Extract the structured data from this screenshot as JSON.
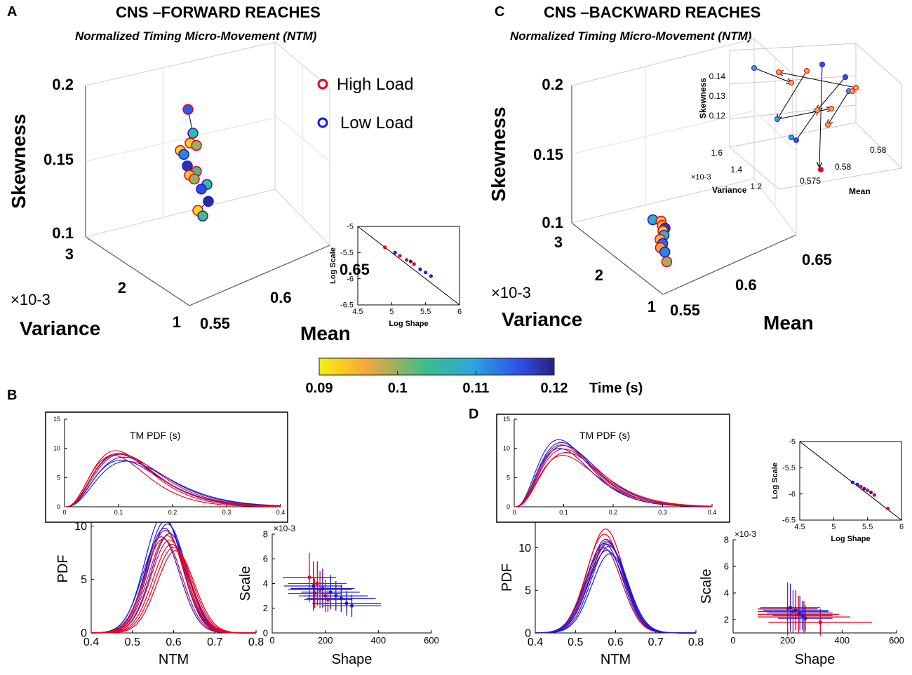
{
  "chart_data": [
    {
      "panel": "A",
      "type": "scatter",
      "title": "CNS –FORWARD REACHES",
      "subtitle": "Normalized Timing Micro-Movement (NTM)",
      "zlabel": "Skewness",
      "ylabel": "Variance",
      "xlabel": "Mean",
      "variance_multiplier": "×10-3",
      "z_ticks": [
        "0.2",
        "0.15",
        "0.1"
      ],
      "variance_ticks": [
        "3",
        "2",
        "1"
      ],
      "mean_ticks": [
        "0.65",
        "0.6",
        "0.55"
      ],
      "legend": [
        {
          "label": "High Load",
          "color": "#e8001c"
        },
        {
          "label": "Low Load",
          "color": "#1a1adb"
        }
      ],
      "points": [
        {
          "mean": 0.585,
          "variance": 1.6,
          "skewness": 0.18,
          "time": 0.115,
          "load": "high"
        },
        {
          "mean": 0.59,
          "variance": 1.5,
          "skewness": 0.165,
          "time": 0.105,
          "load": "low"
        },
        {
          "mean": 0.588,
          "variance": 1.6,
          "skewness": 0.158,
          "time": 0.093,
          "load": "high"
        },
        {
          "mean": 0.595,
          "variance": 1.5,
          "skewness": 0.157,
          "time": 0.1,
          "load": "high"
        },
        {
          "mean": 0.578,
          "variance": 1.8,
          "skewness": 0.152,
          "time": 0.092,
          "load": "high"
        },
        {
          "mean": 0.581,
          "variance": 1.7,
          "skewness": 0.15,
          "time": 0.112,
          "load": "low"
        },
        {
          "mean": 0.584,
          "variance": 1.6,
          "skewness": 0.143,
          "time": 0.118,
          "load": "low"
        },
        {
          "mean": 0.595,
          "variance": 1.5,
          "skewness": 0.14,
          "time": 0.103,
          "load": "high"
        },
        {
          "mean": 0.587,
          "variance": 1.6,
          "skewness": 0.137,
          "time": 0.094,
          "load": "high"
        },
        {
          "mean": 0.592,
          "variance": 1.5,
          "skewness": 0.135,
          "time": 0.1,
          "load": "high"
        },
        {
          "mean": 0.608,
          "variance": 1.4,
          "skewness": 0.132,
          "time": 0.104,
          "load": "low"
        },
        {
          "mean": 0.6,
          "variance": 1.4,
          "skewness": 0.129,
          "time": 0.116,
          "load": "low"
        },
        {
          "mean": 0.61,
          "variance": 1.4,
          "skewness": 0.121,
          "time": 0.119,
          "load": "low"
        },
        {
          "mean": 0.595,
          "variance": 1.4,
          "skewness": 0.115,
          "time": 0.092,
          "load": "high"
        },
        {
          "mean": 0.6,
          "variance": 1.3,
          "skewness": 0.112,
          "time": 0.103,
          "load": "low"
        }
      ]
    },
    {
      "panel": "C",
      "type": "scatter",
      "title": "CNS –BACKWARD REACHES",
      "subtitle": "Normalized Timing Micro-Movement (NTM)",
      "zlabel": "Skewness",
      "ylabel": "Variance",
      "xlabel": "Mean",
      "variance_multiplier": "×10-3",
      "z_ticks": [
        "0.2",
        "0.15",
        "0.1"
      ],
      "variance_ticks": [
        "3",
        "2",
        "1"
      ],
      "mean_ticks": [
        "0.65",
        "0.6",
        "0.55"
      ],
      "inset": {
        "zlabel": "Skewness",
        "ylabel": "Variance",
        "xlabel": "Mean",
        "variance_multiplier": "×10-3",
        "z_ticks": [
          "0.14",
          "0.13",
          "0.12"
        ],
        "variance_ticks": [
          "1.6",
          "1.4",
          "1.2"
        ],
        "mean_ticks": [
          "0.575",
          "0.58",
          "0.58"
        ]
      },
      "points": [
        {
          "mean": 0.57,
          "variance": 1.2,
          "skewness": 0.122,
          "time": 0.108,
          "load": "low"
        },
        {
          "mean": 0.575,
          "variance": 1.2,
          "skewness": 0.121,
          "time": 0.094,
          "load": "high"
        },
        {
          "mean": 0.576,
          "variance": 1.2,
          "skewness": 0.118,
          "time": 0.096,
          "load": "high"
        },
        {
          "mean": 0.578,
          "variance": 1.2,
          "skewness": 0.116,
          "time": 0.118,
          "load": "low"
        },
        {
          "mean": 0.577,
          "variance": 1.2,
          "skewness": 0.114,
          "time": 0.093,
          "load": "high"
        },
        {
          "mean": 0.578,
          "variance": 1.2,
          "skewness": 0.111,
          "time": 0.106,
          "load": "low"
        },
        {
          "mean": 0.576,
          "variance": 1.2,
          "skewness": 0.108,
          "time": 0.095,
          "load": "high"
        },
        {
          "mean": 0.578,
          "variance": 1.2,
          "skewness": 0.105,
          "time": 0.114,
          "load": "low"
        },
        {
          "mean": 0.577,
          "variance": 1.2,
          "skewness": 0.102,
          "time": 0.096,
          "load": "high"
        },
        {
          "mean": 0.58,
          "variance": 1.2,
          "skewness": 0.099,
          "time": 0.112,
          "load": "low"
        },
        {
          "mean": 0.582,
          "variance": 1.2,
          "skewness": 0.092,
          "time": 0.099,
          "load": "high"
        }
      ]
    },
    {
      "panel": "colorbar",
      "type": "heatmap",
      "label": "Time (s)",
      "ticks": [
        "0.09",
        "0.1",
        "0.11",
        "0.12"
      ],
      "range": [
        0.09,
        0.12
      ],
      "colors": [
        "#f8f010",
        "#f5a63a",
        "#3dbd8a",
        "#2aa8dc",
        "#3050e8",
        "#2a2080"
      ]
    },
    {
      "panel": "B",
      "type": "line",
      "main": {
        "xlabel": "NTM",
        "ylabel": "PDF",
        "x_ticks": [
          "0.4",
          "0.5",
          "0.6",
          "0.7",
          "0.8"
        ],
        "y_ticks": [
          "0",
          "5",
          "10"
        ],
        "xlim": [
          0.4,
          0.8
        ],
        "ylim": [
          0,
          12
        ],
        "curves": [
          {
            "load": "low",
            "mu": 0.575,
            "peak": 11.0
          },
          {
            "load": "low",
            "mu": 0.58,
            "peak": 10.5
          },
          {
            "load": "low",
            "mu": 0.585,
            "peak": 10.2
          },
          {
            "load": "low",
            "mu": 0.578,
            "peak": 9.8
          },
          {
            "load": "low",
            "mu": 0.59,
            "peak": 9.3
          },
          {
            "load": "low",
            "mu": 0.57,
            "peak": 9.0
          },
          {
            "load": "high",
            "mu": 0.58,
            "peak": 9.6
          },
          {
            "load": "high",
            "mu": 0.585,
            "peak": 9.1
          },
          {
            "load": "high",
            "mu": 0.59,
            "peak": 8.7
          },
          {
            "load": "high",
            "mu": 0.595,
            "peak": 8.3
          },
          {
            "load": "high",
            "mu": 0.6,
            "peak": 8.0
          },
          {
            "load": "high",
            "mu": 0.575,
            "peak": 8.8
          },
          {
            "load": "high",
            "mu": 0.605,
            "peak": 7.7
          }
        ]
      },
      "inset": {
        "title": "TM PDF (s)",
        "x_ticks": [
          "0",
          "0.1",
          "0.2",
          "0.3",
          "0.4"
        ],
        "y_ticks": [
          "0",
          "5",
          "10",
          "15"
        ],
        "xlim": [
          0,
          0.4
        ],
        "ylim": [
          0,
          15
        ],
        "curves": [
          {
            "load": "low",
            "mode": 0.1,
            "peak": 9.0
          },
          {
            "load": "low",
            "mode": 0.11,
            "peak": 8.5
          },
          {
            "load": "low",
            "mode": 0.105,
            "peak": 8.0
          },
          {
            "load": "low",
            "mode": 0.115,
            "peak": 7.8
          },
          {
            "load": "high",
            "mode": 0.095,
            "peak": 9.6
          },
          {
            "load": "high",
            "mode": 0.1,
            "peak": 9.2
          },
          {
            "load": "high",
            "mode": 0.09,
            "peak": 8.8
          },
          {
            "load": "high",
            "mode": 0.105,
            "peak": 9.0
          }
        ]
      },
      "scatter": {
        "xlabel": "Shape",
        "ylabel": "Scale",
        "multiplier": "×10-3",
        "x_ticks": [
          "0",
          "200",
          "400",
          "600"
        ],
        "y_ticks": [
          "0",
          "2",
          "4",
          "6",
          "8"
        ],
        "xlim": [
          0,
          600
        ],
        "ylim": [
          0,
          8
        ],
        "points": [
          {
            "load": "high",
            "x": 140,
            "y": 4.5,
            "xerr": 100,
            "yerr": 2.0
          },
          {
            "load": "high",
            "x": 170,
            "y": 4.0,
            "xerr": 110,
            "yerr": 1.8
          },
          {
            "load": "high",
            "x": 180,
            "y": 3.5,
            "xerr": 120,
            "yerr": 1.5
          },
          {
            "load": "high",
            "x": 200,
            "y": 3.0,
            "xerr": 100,
            "yerr": 1.3
          },
          {
            "load": "high",
            "x": 210,
            "y": 2.7,
            "xerr": 90,
            "yerr": 1.0
          },
          {
            "load": "high",
            "x": 160,
            "y": 3.2,
            "xerr": 100,
            "yerr": 1.2
          },
          {
            "load": "low",
            "x": 155,
            "y": 3.8,
            "xerr": 110,
            "yerr": 2.0
          },
          {
            "load": "low",
            "x": 190,
            "y": 3.6,
            "xerr": 120,
            "yerr": 1.6
          },
          {
            "load": "low",
            "x": 220,
            "y": 3.3,
            "xerr": 110,
            "yerr": 1.4
          },
          {
            "load": "low",
            "x": 240,
            "y": 3.0,
            "xerr": 120,
            "yerr": 1.2
          },
          {
            "load": "low",
            "x": 260,
            "y": 2.8,
            "xerr": 130,
            "yerr": 1.1
          },
          {
            "load": "low",
            "x": 280,
            "y": 2.4,
            "xerr": 130,
            "yerr": 1.0
          },
          {
            "load": "low",
            "x": 300,
            "y": 2.2,
            "xerr": 110,
            "yerr": 0.9
          }
        ]
      },
      "log_inset": {
        "xlabel": "Log Shape",
        "ylabel": "Log Scale",
        "x_ticks": [
          "4.5",
          "5",
          "5.5",
          "6"
        ],
        "y_ticks": [
          "-5",
          "-5.5",
          "-6",
          "-6.5"
        ],
        "xlim": [
          4.5,
          6
        ],
        "ylim": [
          -6.5,
          -5
        ],
        "points": [
          {
            "load": "high",
            "x": 4.9,
            "y": -5.4
          },
          {
            "load": "low",
            "x": 5.05,
            "y": -5.5
          },
          {
            "load": "high",
            "x": 5.12,
            "y": -5.56
          },
          {
            "load": "high",
            "x": 5.22,
            "y": -5.64
          },
          {
            "load": "low",
            "x": 5.28,
            "y": -5.67
          },
          {
            "load": "high",
            "x": 5.33,
            "y": -5.72
          },
          {
            "load": "low",
            "x": 5.42,
            "y": -5.82
          },
          {
            "load": "low",
            "x": 5.5,
            "y": -5.88
          },
          {
            "load": "low",
            "x": 5.58,
            "y": -5.95
          }
        ]
      }
    },
    {
      "panel": "D",
      "type": "line",
      "main": {
        "xlabel": "NTM",
        "ylabel": "PDF",
        "x_ticks": [
          "0.4",
          "0.5",
          "0.6",
          "0.7",
          "0.8"
        ],
        "y_ticks": [
          "0",
          "5",
          "10"
        ],
        "xlim": [
          0.4,
          0.8
        ],
        "ylim": [
          0,
          13
        ],
        "curves": [
          {
            "load": "high",
            "mu": 0.575,
            "peak": 12.2
          },
          {
            "load": "high",
            "mu": 0.572,
            "peak": 11.6
          },
          {
            "load": "high",
            "mu": 0.578,
            "peak": 10.8
          },
          {
            "load": "high",
            "mu": 0.58,
            "peak": 10.4
          },
          {
            "load": "high",
            "mu": 0.57,
            "peak": 10.0
          },
          {
            "load": "low",
            "mu": 0.576,
            "peak": 11.0
          },
          {
            "load": "low",
            "mu": 0.58,
            "peak": 10.6
          },
          {
            "load": "low",
            "mu": 0.584,
            "peak": 10.2
          },
          {
            "load": "low",
            "mu": 0.578,
            "peak": 9.7
          },
          {
            "load": "low",
            "mu": 0.586,
            "peak": 9.3
          },
          {
            "load": "low",
            "mu": 0.572,
            "peak": 10.5
          }
        ]
      },
      "inset": {
        "title": "TM PDF (s)",
        "x_ticks": [
          "0",
          "0.1",
          "0.2",
          "0.3",
          "0.4"
        ],
        "y_ticks": [
          "0",
          "5",
          "10",
          "15"
        ],
        "xlim": [
          0,
          0.4
        ],
        "ylim": [
          0,
          15
        ],
        "curves": [
          {
            "load": "low",
            "mode": 0.09,
            "peak": 11.5
          },
          {
            "load": "low",
            "mode": 0.095,
            "peak": 11.0
          },
          {
            "load": "low",
            "mode": 0.1,
            "peak": 10.5
          },
          {
            "load": "low",
            "mode": 0.092,
            "peak": 10.0
          },
          {
            "load": "high",
            "mode": 0.095,
            "peak": 10.6
          },
          {
            "load": "high",
            "mode": 0.1,
            "peak": 9.9
          },
          {
            "load": "high",
            "mode": 0.105,
            "peak": 9.3
          },
          {
            "load": "high",
            "mode": 0.098,
            "peak": 8.8
          }
        ]
      },
      "scatter": {
        "xlabel": "Shape",
        "ylabel": "Scale",
        "multiplier": "×10-3",
        "x_ticks": [
          "0",
          "200",
          "400",
          "600"
        ],
        "y_ticks": [
          "2",
          "4",
          "6",
          "8"
        ],
        "xlim": [
          0,
          600
        ],
        "ylim": [
          1,
          8
        ],
        "points": [
          {
            "load": "high",
            "x": 200,
            "y": 2.8,
            "xerr": 110,
            "yerr": 2.0
          },
          {
            "load": "high",
            "x": 220,
            "y": 2.6,
            "xerr": 130,
            "yerr": 1.6
          },
          {
            "load": "high",
            "x": 240,
            "y": 2.4,
            "xerr": 150,
            "yerr": 1.4
          },
          {
            "load": "high",
            "x": 260,
            "y": 2.2,
            "xerr": 170,
            "yerr": 1.2
          },
          {
            "load": "high",
            "x": 320,
            "y": 1.8,
            "xerr": 190,
            "yerr": 1.0
          },
          {
            "load": "low",
            "x": 210,
            "y": 2.9,
            "xerr": 110,
            "yerr": 1.8
          },
          {
            "load": "low",
            "x": 230,
            "y": 2.7,
            "xerr": 120,
            "yerr": 1.5
          },
          {
            "load": "low",
            "x": 245,
            "y": 2.5,
            "xerr": 120,
            "yerr": 1.3
          },
          {
            "load": "low",
            "x": 255,
            "y": 2.3,
            "xerr": 110,
            "yerr": 1.1
          },
          {
            "load": "low",
            "x": 265,
            "y": 2.1,
            "xerr": 100,
            "yerr": 1.0
          }
        ]
      },
      "log_inset": {
        "xlabel": "Log Shape",
        "ylabel": "Log Scale",
        "x_ticks": [
          "4.5",
          "5",
          "5.5",
          "6"
        ],
        "y_ticks": [
          "-5",
          "-5.5",
          "-6",
          "-6.5"
        ],
        "xlim": [
          4.5,
          6
        ],
        "ylim": [
          -6.5,
          -5
        ],
        "points": [
          {
            "load": "low",
            "x": 5.28,
            "y": -5.78
          },
          {
            "load": "low",
            "x": 5.35,
            "y": -5.82
          },
          {
            "load": "high",
            "x": 5.4,
            "y": -5.86
          },
          {
            "load": "low",
            "x": 5.45,
            "y": -5.9
          },
          {
            "load": "high",
            "x": 5.5,
            "y": -5.93
          },
          {
            "load": "low",
            "x": 5.55,
            "y": -5.97
          },
          {
            "load": "high",
            "x": 5.6,
            "y": -6.02
          },
          {
            "load": "high",
            "x": 5.8,
            "y": -6.28
          }
        ]
      }
    }
  ],
  "panel_letters": {
    "a": "A",
    "b": "B",
    "c": "C",
    "d": "D"
  }
}
